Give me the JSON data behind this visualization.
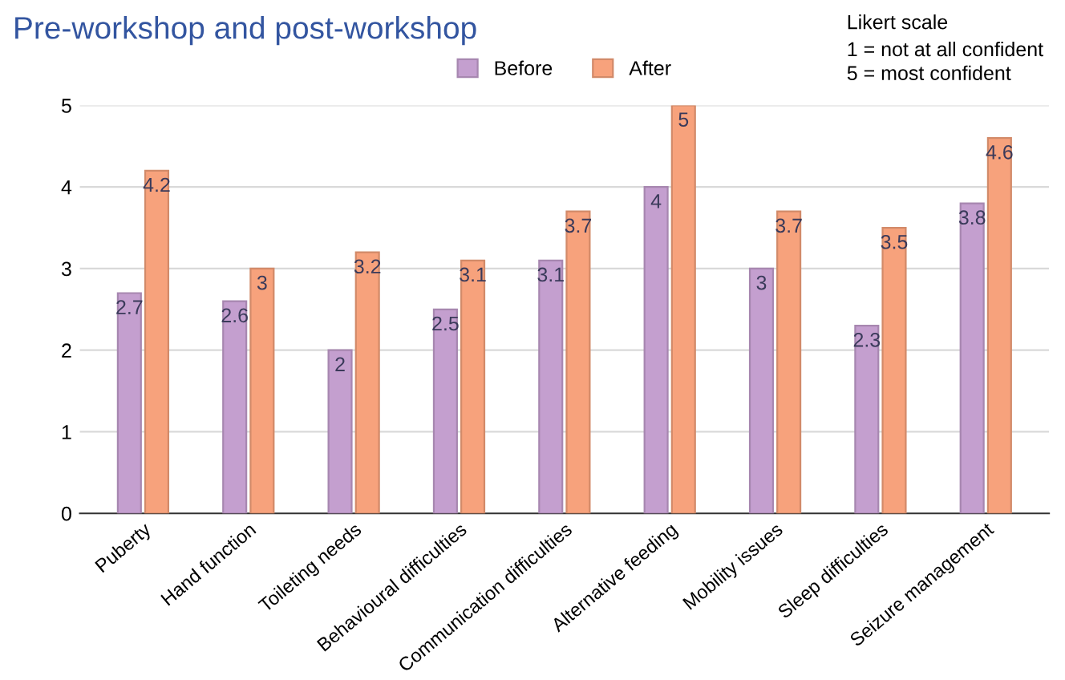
{
  "chart_data": {
    "type": "bar",
    "title": "Pre-workshop and post-workshop",
    "categories": [
      "Puberty",
      "Hand function",
      "Toileting needs",
      "Behavioural difficulties",
      "Communication difficulties",
      "Alternative feeding",
      "Mobility issues",
      "Sleep difficulties",
      "Seizure management"
    ],
    "series": [
      {
        "name": "Before",
        "color": "#c49fcf",
        "values": [
          2.7,
          2.6,
          2,
          2.5,
          3.1,
          4,
          3,
          2.3,
          3.8
        ]
      },
      {
        "name": "After",
        "color": "#f7a27c",
        "values": [
          4.2,
          3,
          3.2,
          3.1,
          3.7,
          5,
          3.7,
          3.5,
          4.6
        ]
      }
    ],
    "ylim": [
      0,
      5
    ],
    "yticks": [
      0,
      1,
      2,
      3,
      4,
      5
    ],
    "grid": "y",
    "legend": "top",
    "data_labels": true,
    "annotations": [
      "Likert scale",
      "1 = not at all confident",
      "5 = most confident"
    ]
  }
}
